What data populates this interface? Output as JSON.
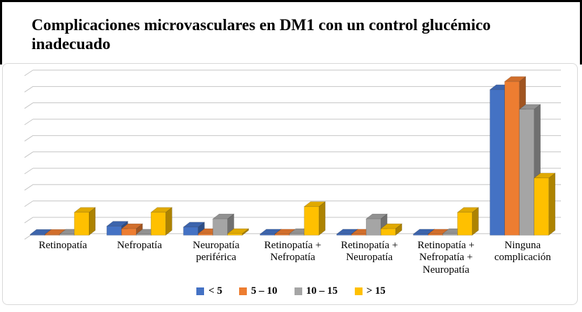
{
  "page": {
    "title": "Complicaciones microvasculares en DM1 con un control glucémico inadecuado"
  },
  "chart_data": {
    "type": "bar",
    "variant": "3d-clustered-column",
    "title": "Complicaciones microvasculares en DM1 con un control glucémico inadecuado",
    "categories": [
      {
        "label": "Retinopatía",
        "lines": [
          "Retinopatía"
        ]
      },
      {
        "label": "Nefropatía",
        "lines": [
          "Nefropatía"
        ]
      },
      {
        "label": "Neuropatía periférica",
        "lines": [
          "Neuropatía",
          "periférica"
        ]
      },
      {
        "label": "Retinopatía + Nefropatía",
        "lines": [
          "Retinopatía +",
          "Nefropatía"
        ]
      },
      {
        "label": "Retinopatía + Neuropatía",
        "lines": [
          "Retinopatía +",
          "Neuropatía"
        ]
      },
      {
        "label": "Retinopatía + Nefropatía + Neuropatía",
        "lines": [
          "Retinopatía +",
          "Nefropatía +",
          "Neuropatía"
        ]
      },
      {
        "label": "Ninguna complicación",
        "lines": [
          "Ninguna",
          "complicación"
        ]
      }
    ],
    "series": [
      {
        "name": "< 5",
        "color": "#4472C4",
        "values": [
          0.05,
          0.55,
          0.5,
          0.07,
          0.07,
          0.07,
          8.9
        ]
      },
      {
        "name": "5 – 10",
        "color": "#ED7D31",
        "values": [
          0.05,
          0.4,
          0.1,
          0.07,
          0.07,
          0.07,
          9.4
        ]
      },
      {
        "name": "10 – 15",
        "color": "#A5A5A5",
        "values": [
          0.07,
          0.07,
          1.0,
          0.1,
          1.0,
          0.1,
          7.7
        ]
      },
      {
        "name": "> 15",
        "color": "#FFC000",
        "values": [
          1.4,
          1.4,
          0.1,
          1.75,
          0.4,
          1.4,
          3.5
        ]
      }
    ],
    "xlabel": "",
    "ylabel": "",
    "y_axis": {
      "min": 0,
      "max": 10,
      "gridline_step": 1,
      "tick_labels_visible": false
    },
    "grid": true,
    "legend_position": "bottom",
    "gridline_color": "#c6c6c6",
    "value_note": "no data labels or y-axis tick labels are shown in the chart; values estimated in gridline units"
  }
}
